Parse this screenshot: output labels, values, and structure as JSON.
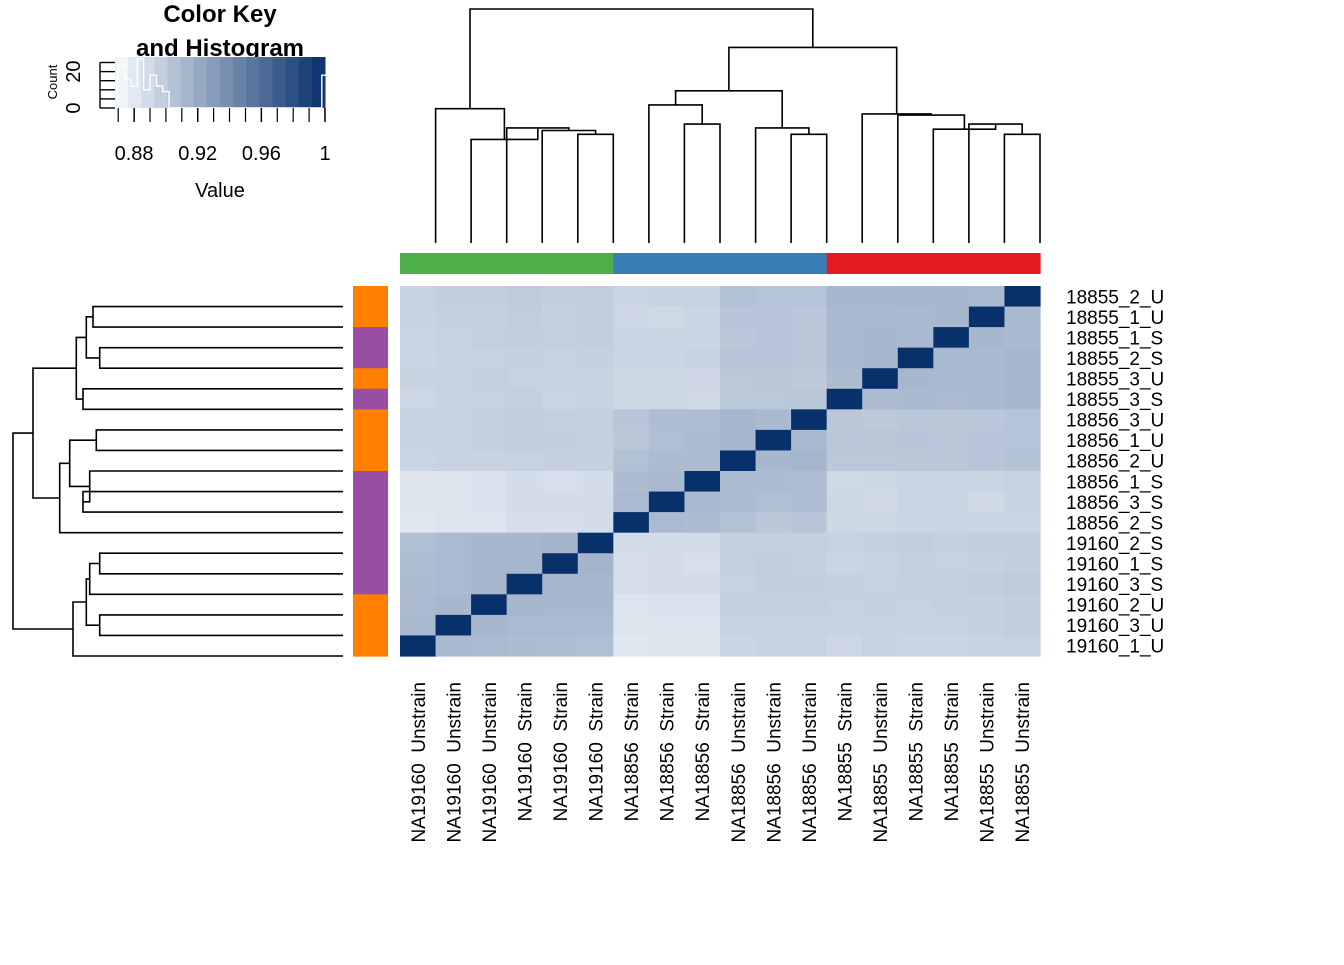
{
  "colors": {
    "heat_low": "#f7fbff",
    "heat_high": "#08306b",
    "group_green": "#4daf4a",
    "group_blue": "#377eb8",
    "group_red": "#e41a1c",
    "treat_orange": "#ff7f00",
    "treat_purple": "#984ea3"
  },
  "color_key": {
    "title_line1": "Color Key",
    "title_line2": "and Histogram",
    "xlabel": "Value",
    "ylabel": "Count",
    "xticks": [
      "0.88",
      "0.92",
      "0.96",
      "1"
    ],
    "yticks": [
      "0",
      "20"
    ],
    "xlim": [
      0.868,
      1.0
    ],
    "ylim": [
      0,
      28
    ],
    "histogram": [
      {
        "value": 0.872,
        "count": 24
      },
      {
        "value": 0.876,
        "count": 16
      },
      {
        "value": 0.88,
        "count": 12
      },
      {
        "value": 0.884,
        "count": 27
      },
      {
        "value": 0.888,
        "count": 10
      },
      {
        "value": 0.892,
        "count": 18
      },
      {
        "value": 0.896,
        "count": 12
      },
      {
        "value": 0.9,
        "count": 9
      },
      {
        "value": 0.904,
        "count": 0
      },
      {
        "value": 0.908,
        "count": 0
      },
      {
        "value": 0.996,
        "count": 0
      },
      {
        "value": 1.0,
        "count": 18
      }
    ]
  },
  "chart_data": {
    "type": "heatmap",
    "value_range": [
      0.868,
      1.0
    ],
    "rows": [
      "18855_2_U",
      "18855_1_U",
      "18855_1_S",
      "18855_2_S",
      "18855_3_U",
      "18855_3_S",
      "18856_3_U",
      "18856_1_U",
      "18856_2_U",
      "18856_1_S",
      "18856_3_S",
      "18856_2_S",
      "19160_2_S",
      "19160_1_S",
      "19160_3_S",
      "19160_2_U",
      "19160_3_U",
      "19160_1_U"
    ],
    "columns": [
      "NA19160  Unstrain",
      "NA19160  Unstrain",
      "NA19160  Unstrain",
      "NA19160  Strain",
      "NA19160  Strain",
      "NA19160  Strain",
      "NA18856  Strain",
      "NA18856  Strain",
      "NA18856  Strain",
      "NA18856  Unstrain",
      "NA18856  Unstrain",
      "NA18856  Unstrain",
      "NA18855  Strain",
      "NA18855  Unstrain",
      "NA18855  Strain",
      "NA18855  Strain",
      "NA18855  Unstrain",
      "NA18855  Unstrain"
    ],
    "row_groups": [
      "orange",
      "orange",
      "purple",
      "purple",
      "orange",
      "purple",
      "orange",
      "orange",
      "orange",
      "purple",
      "purple",
      "purple",
      "purple",
      "purple",
      "purple",
      "orange",
      "orange",
      "orange"
    ],
    "column_groups": [
      "green",
      "green",
      "green",
      "green",
      "green",
      "green",
      "blue",
      "blue",
      "blue",
      "blue",
      "blue",
      "blue",
      "red",
      "red",
      "red",
      "red",
      "red",
      "red"
    ],
    "values": [
      [
        0.895,
        0.897,
        0.897,
        0.899,
        0.897,
        0.898,
        0.893,
        0.894,
        0.895,
        0.905,
        0.904,
        0.904,
        0.912,
        0.912,
        0.913,
        0.912,
        0.911,
        1.0
      ],
      [
        0.894,
        0.896,
        0.896,
        0.898,
        0.896,
        0.897,
        0.892,
        0.89,
        0.893,
        0.903,
        0.903,
        0.902,
        0.911,
        0.911,
        0.911,
        0.912,
        1.0,
        0.911
      ],
      [
        0.893,
        0.895,
        0.896,
        0.897,
        0.896,
        0.897,
        0.893,
        0.893,
        0.893,
        0.902,
        0.903,
        0.902,
        0.911,
        0.912,
        0.911,
        1.0,
        0.912,
        0.911
      ],
      [
        0.893,
        0.894,
        0.895,
        0.896,
        0.895,
        0.896,
        0.893,
        0.893,
        0.894,
        0.903,
        0.903,
        0.902,
        0.911,
        0.912,
        1.0,
        0.911,
        0.911,
        0.913
      ],
      [
        0.894,
        0.895,
        0.896,
        0.895,
        0.894,
        0.895,
        0.891,
        0.891,
        0.892,
        0.901,
        0.902,
        0.9,
        0.909,
        1.0,
        0.912,
        0.911,
        0.911,
        0.912
      ],
      [
        0.892,
        0.895,
        0.895,
        0.896,
        0.893,
        0.895,
        0.891,
        0.891,
        0.89,
        0.901,
        0.901,
        0.902,
        1.0,
        0.909,
        0.911,
        0.91,
        0.911,
        0.912
      ],
      [
        0.894,
        0.895,
        0.896,
        0.897,
        0.896,
        0.896,
        0.903,
        0.908,
        0.908,
        0.913,
        0.911,
        1.0,
        0.902,
        0.9,
        0.902,
        0.902,
        0.902,
        0.904
      ],
      [
        0.894,
        0.894,
        0.896,
        0.897,
        0.897,
        0.896,
        0.902,
        0.907,
        0.909,
        0.912,
        1.0,
        0.911,
        0.902,
        0.902,
        0.903,
        0.902,
        0.903,
        0.904
      ],
      [
        0.893,
        0.894,
        0.894,
        0.895,
        0.896,
        0.896,
        0.906,
        0.909,
        0.909,
        1.0,
        0.912,
        0.913,
        0.901,
        0.901,
        0.902,
        0.902,
        0.903,
        0.905
      ],
      [
        0.882,
        0.883,
        0.884,
        0.888,
        0.886,
        0.888,
        0.909,
        0.911,
        1.0,
        0.909,
        0.909,
        0.908,
        0.89,
        0.891,
        0.893,
        0.893,
        0.893,
        0.895
      ],
      [
        0.882,
        0.883,
        0.884,
        0.888,
        0.888,
        0.888,
        0.91,
        1.0,
        0.911,
        0.909,
        0.907,
        0.908,
        0.891,
        0.89,
        0.893,
        0.893,
        0.89,
        0.894
      ],
      [
        0.881,
        0.883,
        0.883,
        0.887,
        0.887,
        0.888,
        1.0,
        0.91,
        0.909,
        0.906,
        0.902,
        0.903,
        0.891,
        0.891,
        0.893,
        0.893,
        0.893,
        0.893
      ],
      [
        0.907,
        0.91,
        0.912,
        0.912,
        0.914,
        1.0,
        0.888,
        0.888,
        0.888,
        0.896,
        0.896,
        0.896,
        0.895,
        0.896,
        0.897,
        0.896,
        0.897,
        0.898
      ],
      [
        0.908,
        0.91,
        0.912,
        0.913,
        1.0,
        0.914,
        0.887,
        0.888,
        0.886,
        0.896,
        0.897,
        0.896,
        0.893,
        0.894,
        0.896,
        0.895,
        0.896,
        0.897
      ],
      [
        0.909,
        0.91,
        0.913,
        1.0,
        0.913,
        0.912,
        0.887,
        0.888,
        0.888,
        0.895,
        0.897,
        0.897,
        0.896,
        0.895,
        0.896,
        0.896,
        0.898,
        0.899
      ],
      [
        0.91,
        0.912,
        1.0,
        0.913,
        0.912,
        0.912,
        0.883,
        0.884,
        0.884,
        0.896,
        0.896,
        0.896,
        0.895,
        0.896,
        0.895,
        0.896,
        0.896,
        0.897
      ],
      [
        0.911,
        1.0,
        0.912,
        0.91,
        0.91,
        0.91,
        0.883,
        0.883,
        0.883,
        0.894,
        0.894,
        0.895,
        0.895,
        0.895,
        0.894,
        0.894,
        0.896,
        0.897
      ],
      [
        1.0,
        0.911,
        0.91,
        0.909,
        0.908,
        0.907,
        0.881,
        0.882,
        0.882,
        0.893,
        0.894,
        0.894,
        0.892,
        0.894,
        0.893,
        0.893,
        0.894,
        0.895
      ]
    ],
    "column_dendrogram": [
      {
        "a": 5,
        "b": 6,
        "height": 0.85
      },
      {
        "a": 4,
        "b": "m1",
        "height": 0.88
      },
      {
        "a": 3,
        "b": "m2",
        "height": 0.9
      },
      {
        "a": 2,
        "b": "m3",
        "height": 0.81
      },
      {
        "a": 1,
        "b": "m4",
        "height": 1.05
      },
      {
        "a": 8,
        "b": 9,
        "height": 0.93
      },
      {
        "a": 7,
        "b": "m6",
        "height": 1.08
      },
      {
        "a": 11,
        "b": 12,
        "height": 0.85
      },
      {
        "a": 10,
        "b": "m8",
        "height": 0.9
      },
      {
        "a": "m7",
        "b": "m9",
        "height": 1.19
      },
      {
        "a": 17,
        "b": 18,
        "height": 0.85
      },
      {
        "a": 16,
        "b": "m11",
        "height": 0.93
      },
      {
        "a": 15,
        "b": "m12",
        "height": 0.89
      },
      {
        "a": 14,
        "b": "m13",
        "height": 1.0
      },
      {
        "a": 13,
        "b": "m14",
        "height": 1.01
      },
      {
        "a": "m10",
        "b": "m15",
        "height": 1.53
      },
      {
        "a": "m5",
        "b": "m16",
        "height": 1.83
      }
    ],
    "row_dendrogram": [
      {
        "a": 1,
        "b": 2,
        "height": 0.75
      },
      {
        "a": 3,
        "b": 4,
        "height": 0.73
      },
      {
        "a": "m1",
        "b": "m2",
        "height": 0.77
      },
      {
        "a": 5,
        "b": 6,
        "height": 0.78
      },
      {
        "a": "m3",
        "b": "m4",
        "height": 0.8
      },
      {
        "a": 7,
        "b": 8,
        "height": 0.74
      },
      {
        "a": 10,
        "b": 11,
        "height": 0.78
      },
      {
        "a": 9,
        "b": "m7",
        "height": 0.76
      },
      {
        "a": "m6",
        "b": "m8",
        "height": 0.82
      },
      {
        "a": 12,
        "b": "m9",
        "height": 0.85
      },
      {
        "a": "m5",
        "b": "m10",
        "height": 0.93
      },
      {
        "a": 13,
        "b": 14,
        "height": 0.73
      },
      {
        "a": 15,
        "b": "m12",
        "height": 0.76
      },
      {
        "a": 16,
        "b": 17,
        "height": 0.73
      },
      {
        "a": "m13",
        "b": "m14",
        "height": 0.77
      },
      {
        "a": 18,
        "b": "m15",
        "height": 0.81
      },
      {
        "a": "m11",
        "b": "m16",
        "height": 0.99
      }
    ]
  }
}
